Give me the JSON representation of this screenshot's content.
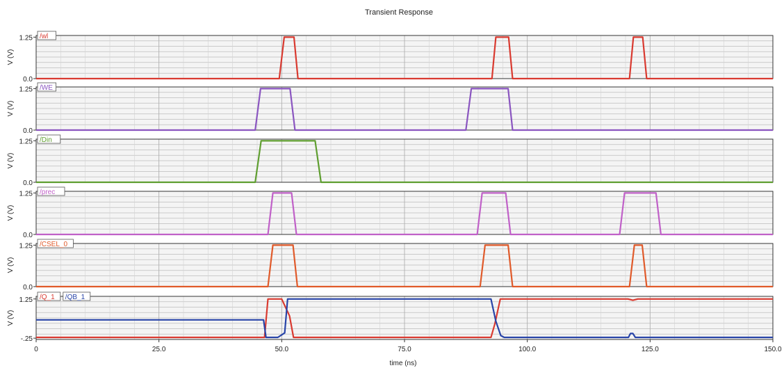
{
  "chart_data": {
    "type": "line",
    "title": "Transient Response",
    "xlabel": "time (ns)",
    "x_ticks": [
      "0",
      "25.0",
      "50.0",
      "75.0",
      "100.0",
      "125.0",
      "150.0"
    ],
    "xlim": [
      0,
      150
    ],
    "grid": true,
    "panels": [
      {
        "ylabel": "V (V)",
        "y_ticks": [
          "1.25",
          "0.0"
        ],
        "ylim": [
          0,
          1.3
        ],
        "series": [
          {
            "name": "/wl",
            "color": "#d93a30",
            "x": [
              0,
              49.5,
              50.5,
              52.5,
              53.3,
              92.8,
              93.6,
              96.2,
              97.0,
              120.8,
              121.6,
              123.5,
              124.3,
              150
            ],
            "y": [
              0,
              0,
              1.25,
              1.25,
              0,
              0,
              1.25,
              1.25,
              0,
              0,
              1.25,
              1.25,
              0,
              0
            ]
          }
        ]
      },
      {
        "ylabel": "V (V)",
        "y_ticks": [
          "1.25",
          "0.0"
        ],
        "ylim": [
          0,
          1.3
        ],
        "series": [
          {
            "name": "/WE",
            "color": "#8a55c0",
            "x": [
              0,
              44.6,
              45.7,
              51.7,
              52.7,
              87.5,
              88.6,
              96.1,
              97.0,
              150
            ],
            "y": [
              0,
              0,
              1.25,
              1.25,
              0,
              0,
              1.25,
              1.25,
              0,
              0
            ]
          }
        ]
      },
      {
        "ylabel": "V (V)",
        "y_ticks": [
          "1.25",
          "0.0"
        ],
        "ylim": [
          0,
          1.3
        ],
        "series": [
          {
            "name": "/Din",
            "color": "#5f9e30",
            "x": [
              0,
              44.6,
              45.8,
              56.8,
              58.0,
              150
            ],
            "y": [
              0,
              0,
              1.25,
              1.25,
              0,
              0
            ]
          }
        ]
      },
      {
        "ylabel": "V (V)",
        "y_ticks": [
          "1.25",
          "0.0"
        ],
        "ylim": [
          0,
          1.3
        ],
        "series": [
          {
            "name": "/prec",
            "color": "#c060c8",
            "x": [
              0,
              47.2,
              48.2,
              52.0,
              53.0,
              89.8,
              90.8,
              95.6,
              96.6,
              118.8,
              119.8,
              126.2,
              127.2,
              150
            ],
            "y": [
              0,
              0,
              1.25,
              1.25,
              0,
              0,
              1.25,
              1.25,
              0,
              0,
              1.25,
              1.25,
              0,
              0
            ]
          }
        ]
      },
      {
        "ylabel": "V (V)",
        "y_ticks": [
          "1.25",
          "0.0"
        ],
        "ylim": [
          0,
          1.3
        ],
        "series": [
          {
            "name": "/CSEL_0",
            "color": "#e05a2a",
            "x": [
              0,
              47.2,
              48.2,
              52.3,
              53.2,
              90.4,
              91.4,
              96.1,
              97.0,
              120.8,
              121.8,
              123.4,
              124.3,
              150
            ],
            "y": [
              0,
              0,
              1.25,
              1.25,
              0,
              0,
              1.25,
              1.25,
              0,
              0,
              1.25,
              1.25,
              0,
              0
            ]
          }
        ]
      },
      {
        "ylabel": "V (V)",
        "y_ticks": [
          "1.25",
          "-.25"
        ],
        "ylim": [
          -0.3,
          1.35
        ],
        "series": [
          {
            "name": "/Q_1",
            "color": "#d93a30",
            "x": [
              0,
              46.5,
              47.2,
              50.0,
              51.6,
              52.4,
              53.2,
              92.6,
              93.4,
              94.5,
              95.5,
              120.5,
              121.5,
              122.5,
              150
            ],
            "y": [
              -0.22,
              -0.22,
              1.25,
              1.25,
              0.6,
              -0.22,
              -0.22,
              -0.22,
              0.3,
              1.25,
              1.25,
              1.25,
              1.2,
              1.25,
              1.25
            ]
          },
          {
            "name": "/QB_1",
            "color": "#2844a8",
            "x": [
              0,
              46.3,
              46.8,
              49.2,
              50.6,
              51.2,
              52.0,
              92.6,
              93.6,
              94.6,
              95.3,
              120.6,
              121.0,
              121.5,
              122.0,
              122.4,
              150
            ],
            "y": [
              0.45,
              0.45,
              -0.22,
              -0.22,
              -0.05,
              1.25,
              1.25,
              1.25,
              0.4,
              -0.15,
              -0.22,
              -0.22,
              -0.07,
              -0.07,
              -0.22,
              -0.22,
              -0.22
            ]
          }
        ]
      }
    ]
  }
}
